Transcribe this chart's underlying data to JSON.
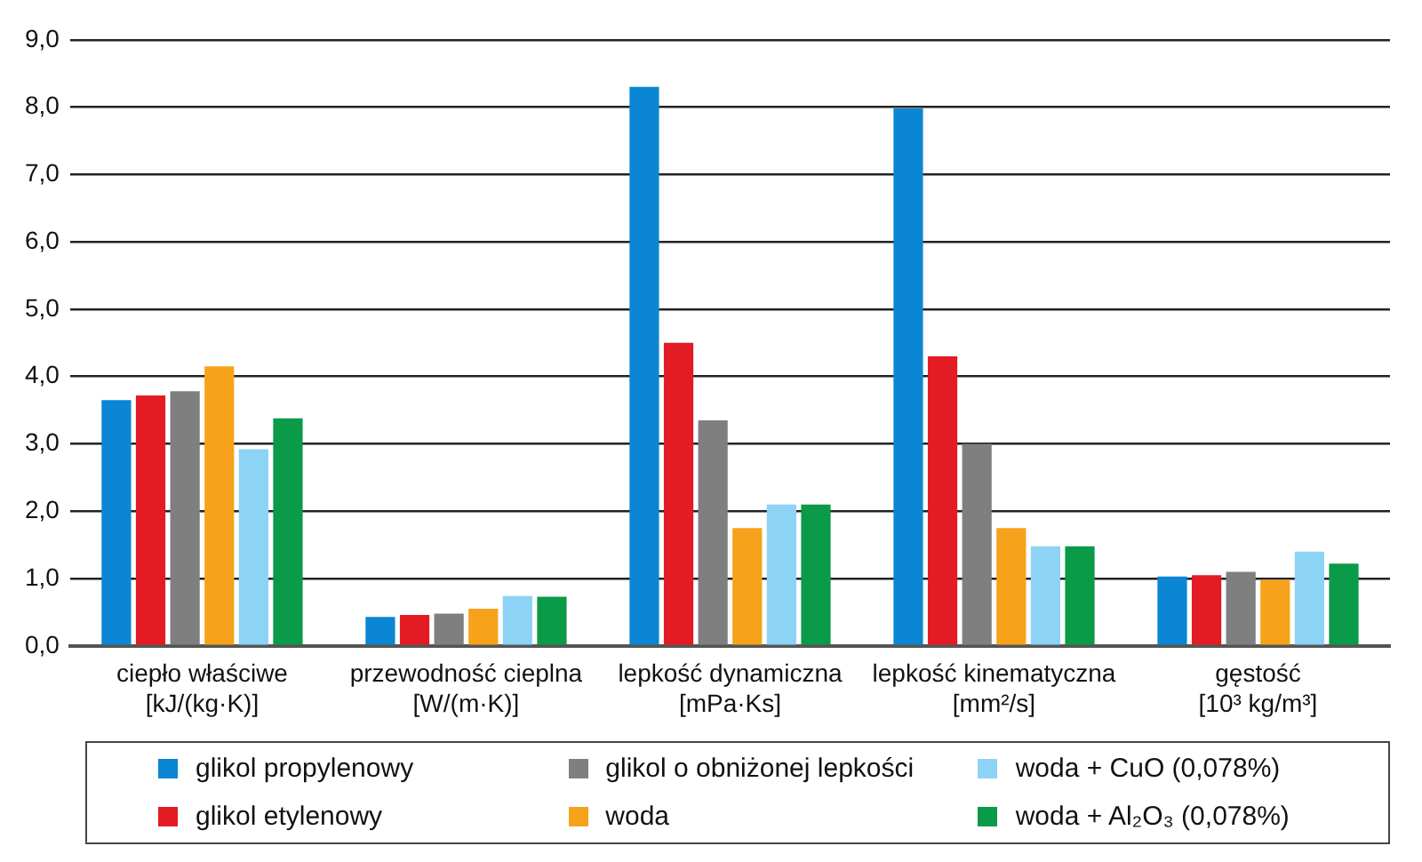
{
  "chart_data": {
    "type": "bar",
    "categories": [
      "ciepło właściwe\n[kJ/(kg·K)]",
      "przewodność cieplna\n[W/(m·K)]",
      "lepkość dynamiczna\n[mPa·Ks]",
      "lepkość kinematyczna\n[mm²/s]",
      "gęstość\n[10³ kg/m³]"
    ],
    "series": [
      {
        "name": "glikol propylenowy",
        "color": "#0a86d4",
        "values": [
          3.65,
          0.43,
          8.3,
          7.98,
          1.03
        ]
      },
      {
        "name": "glikol etylenowy",
        "color": "#e31b23",
        "values": [
          3.72,
          0.46,
          4.5,
          4.3,
          1.05
        ]
      },
      {
        "name": "glikol o obniżonej lepkości",
        "color": "#7f7f7f",
        "values": [
          3.78,
          0.48,
          3.35,
          3.0,
          1.1
        ]
      },
      {
        "name": "woda",
        "color": "#f7a21b",
        "values": [
          4.15,
          0.55,
          1.75,
          1.75,
          0.98
        ]
      },
      {
        "name": "woda + CuO (0,078%)",
        "color": "#8dd3f5",
        "values": [
          2.92,
          0.74,
          2.1,
          1.48,
          1.4
        ]
      },
      {
        "name": "woda + Al₂O₃ (0,078%)",
        "color": "#0a9a48",
        "values": [
          3.38,
          0.73,
          2.1,
          1.48,
          1.22
        ]
      }
    ],
    "ylim": [
      0,
      9
    ],
    "yticks": [
      {
        "value": 0,
        "label": "0,0"
      },
      {
        "value": 1,
        "label": "1,0"
      },
      {
        "value": 2,
        "label": "2,0"
      },
      {
        "value": 3,
        "label": "3,0"
      },
      {
        "value": 4,
        "label": "4,0"
      },
      {
        "value": 5,
        "label": "5,0"
      },
      {
        "value": 6,
        "label": "6,0"
      },
      {
        "value": 7,
        "label": "7,0"
      },
      {
        "value": 8,
        "label": "8,0"
      },
      {
        "value": 9,
        "label": "9,0"
      }
    ],
    "grid": "y",
    "legend": "bottom"
  }
}
